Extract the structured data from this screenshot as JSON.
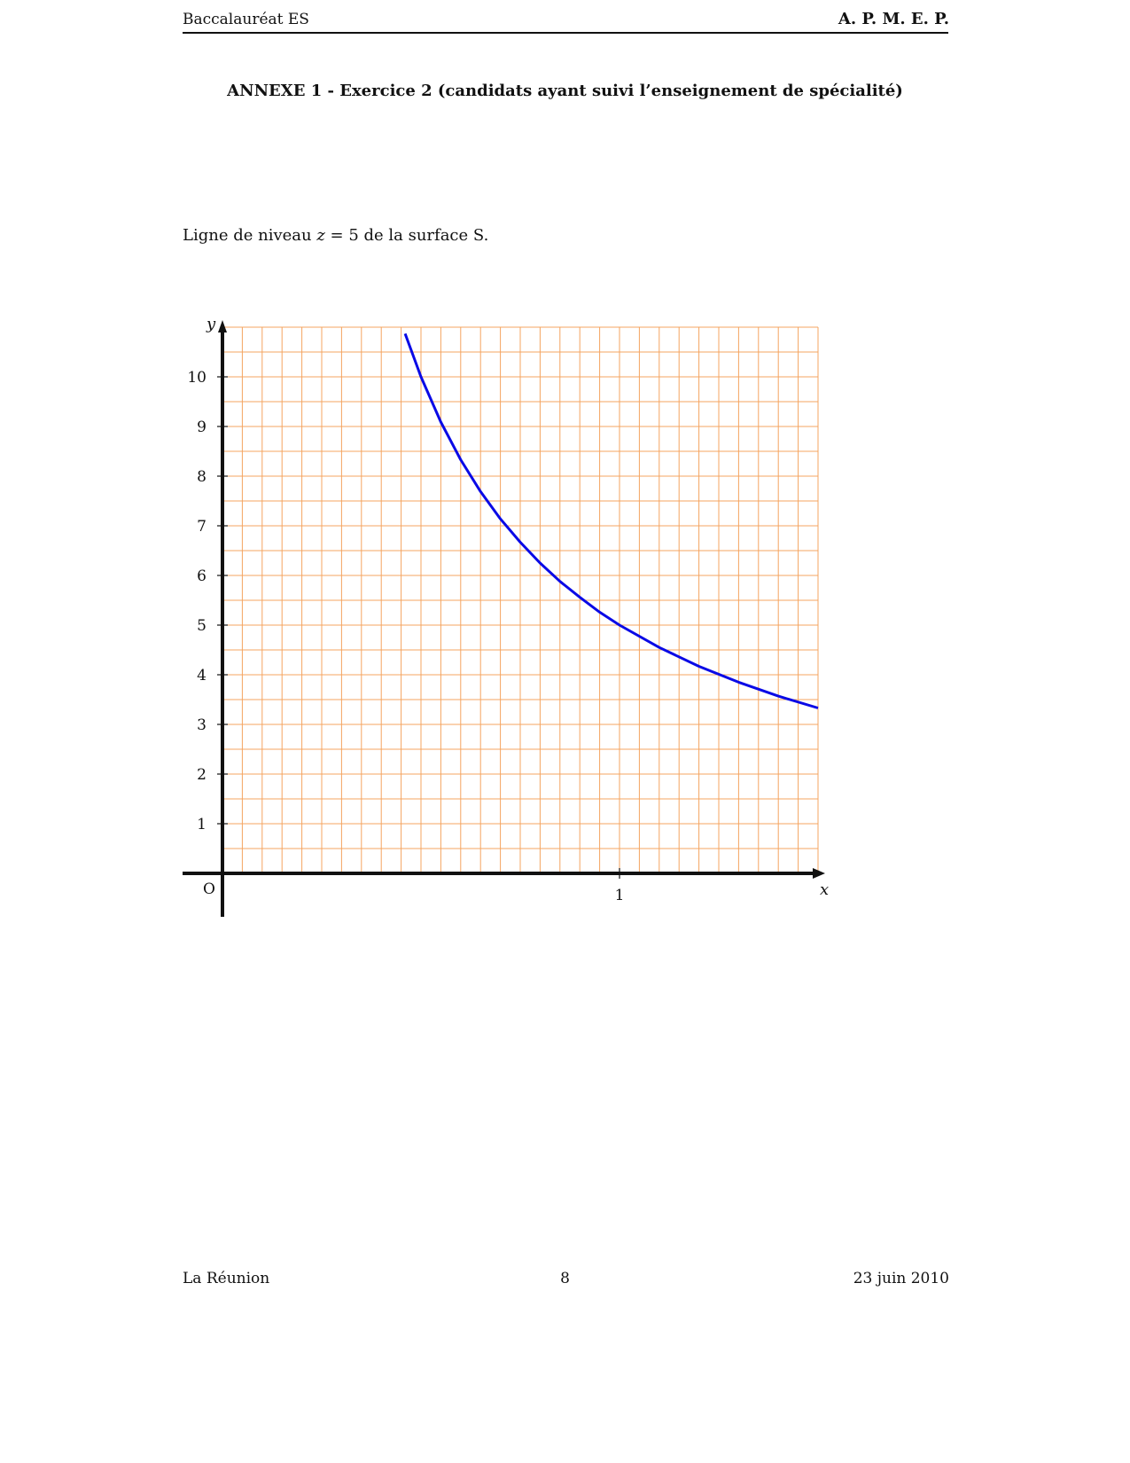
{
  "header": {
    "left": "Baccalauréat ES",
    "right": "A. P. M. E. P."
  },
  "title": "ANNEXE 1 - Exercice 2 (candidats ayant suivi l’enseignement de spécialité)",
  "caption": {
    "before": "Ligne de niveau ",
    "var": "z",
    "after": " = 5 de la surface S."
  },
  "footer": {
    "left": "La Réunion",
    "center": "8",
    "right": "23 juin 2010"
  },
  "chart_data": {
    "type": "line",
    "xlabel": "x",
    "ylabel": "y",
    "origin_label": "O",
    "xlim": [
      0,
      1.5
    ],
    "ylim": [
      0,
      11
    ],
    "x_ticks": [
      {
        "value": 1,
        "label": "1"
      }
    ],
    "y_ticks": [
      {
        "value": 1,
        "label": "1"
      },
      {
        "value": 2,
        "label": "2"
      },
      {
        "value": 3,
        "label": "3"
      },
      {
        "value": 4,
        "label": "4"
      },
      {
        "value": 5,
        "label": "5"
      },
      {
        "value": 6,
        "label": "6"
      },
      {
        "value": 7,
        "label": "7"
      },
      {
        "value": 8,
        "label": "8"
      },
      {
        "value": 9,
        "label": "9"
      },
      {
        "value": 10,
        "label": "10"
      }
    ],
    "grid": true,
    "grid_step": {
      "x": 0.05,
      "y": 0.5
    },
    "grid_color": "#f4a460",
    "curve_color": "#0a0ae6",
    "series": [
      {
        "x": [
          0.46,
          0.5,
          0.55,
          0.6,
          0.65,
          0.7,
          0.75,
          0.8,
          0.85,
          0.9,
          0.95,
          1.0,
          1.1,
          1.2,
          1.3,
          1.4,
          1.5
        ],
        "y": [
          10.87,
          10.0,
          9.09,
          8.33,
          7.69,
          7.14,
          6.67,
          6.25,
          5.88,
          5.56,
          5.26,
          5.0,
          4.55,
          4.17,
          3.85,
          3.57,
          3.33
        ]
      }
    ]
  }
}
